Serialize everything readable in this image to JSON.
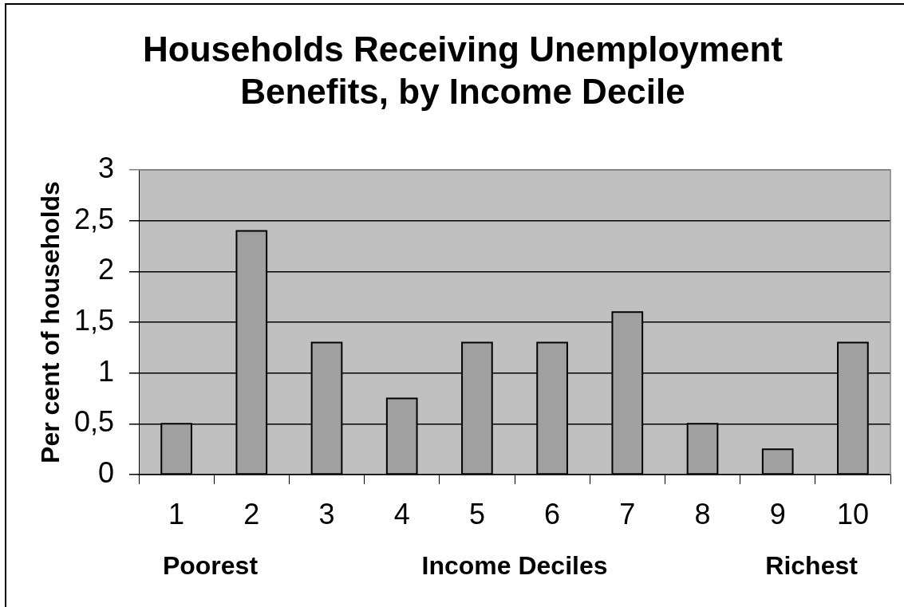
{
  "chart_data": {
    "type": "bar",
    "title": "Households Receiving Unemployment Benefits, by Income Decile",
    "xlabel": "Income Deciles",
    "ylabel": "Per cent of households",
    "categories": [
      "1",
      "2",
      "3",
      "4",
      "5",
      "6",
      "7",
      "8",
      "9",
      "10"
    ],
    "values": [
      0.5,
      2.4,
      1.3,
      0.75,
      1.3,
      1.3,
      1.6,
      0.5,
      0.25,
      1.3
    ],
    "color": "#a0a0a0",
    "ylim": [
      0,
      3
    ],
    "yticks": [
      0,
      {
        "value": 0.5,
        "label": "0,5"
      },
      1,
      {
        "value": 1.5,
        "label": "1,5"
      },
      2,
      {
        "value": 2.5,
        "label": "2,5"
      },
      3
    ],
    "grid": "y",
    "annotations": [
      "Poorest",
      "Richest"
    ]
  }
}
